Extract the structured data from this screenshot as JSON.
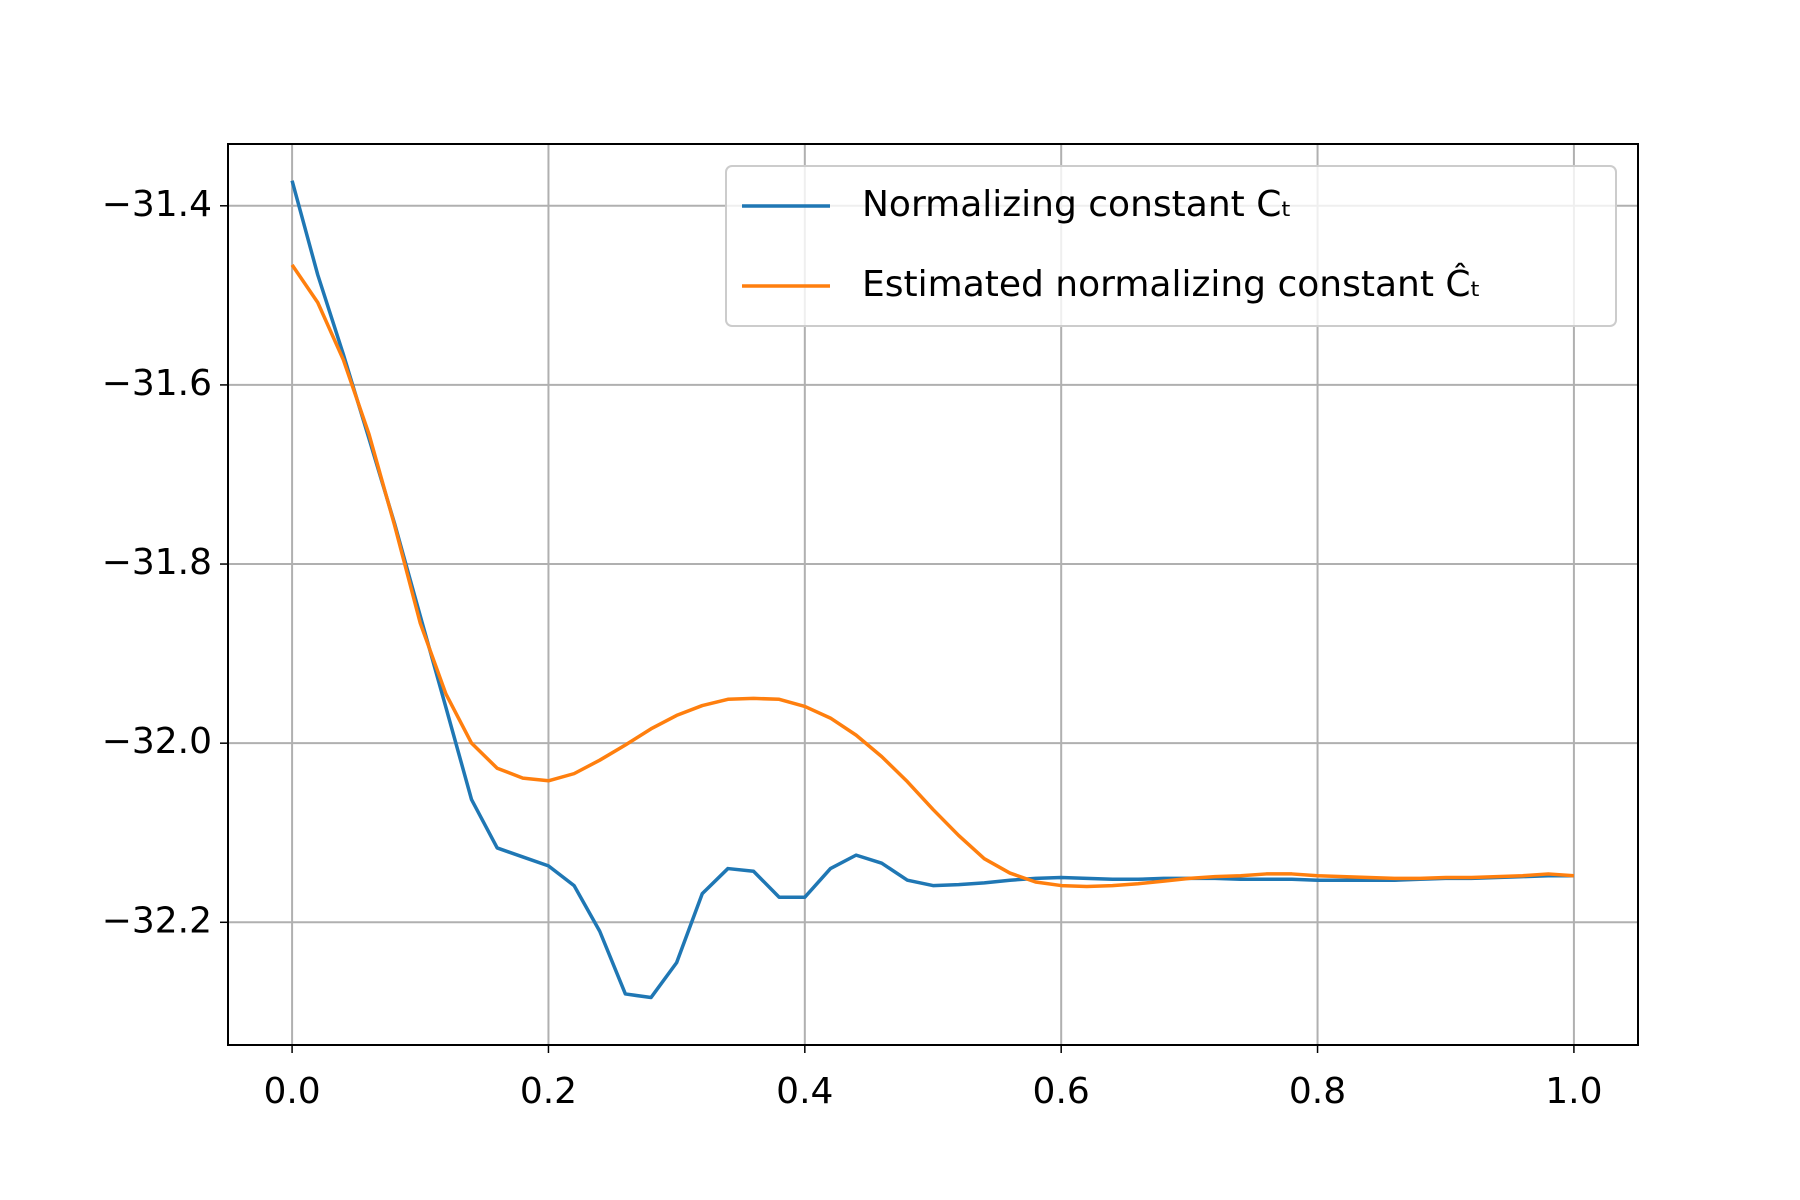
{
  "chart_data": {
    "type": "line",
    "x": [
      0,
      0.02,
      0.04,
      0.06,
      0.08,
      0.1,
      0.12,
      0.14,
      0.16,
      0.18,
      0.2,
      0.22,
      0.24,
      0.26,
      0.28,
      0.3,
      0.32,
      0.34,
      0.36,
      0.38,
      0.4,
      0.42,
      0.44,
      0.46,
      0.48,
      0.5,
      0.52,
      0.54,
      0.56,
      0.58,
      0.6,
      0.62,
      0.64,
      0.66,
      0.68,
      0.7,
      0.72,
      0.74,
      0.76,
      0.78,
      0.8,
      0.82,
      0.84,
      0.86,
      0.88,
      0.9,
      0.92,
      0.94,
      0.96,
      0.98,
      1.0
    ],
    "series": [
      {
        "name": "Normalizing constant Cₜ",
        "color": "#1f77b4",
        "values": [
          -31.372,
          -31.477,
          -31.566,
          -31.66,
          -31.755,
          -31.858,
          -31.96,
          -32.063,
          -32.117,
          -32.127,
          -32.137,
          -32.159,
          -32.21,
          -32.28,
          -32.284,
          -32.245,
          -32.168,
          -32.14,
          -32.143,
          -32.172,
          -32.172,
          -32.14,
          -32.125,
          -32.134,
          -32.153,
          -32.159,
          -32.158,
          -32.156,
          -32.153,
          -32.151,
          -32.15,
          -32.151,
          -32.152,
          -32.152,
          -32.151,
          -32.151,
          -32.151,
          -32.152,
          -32.152,
          -32.152,
          -32.153,
          -32.153,
          -32.153,
          -32.153,
          -32.152,
          -32.151,
          -32.151,
          -32.15,
          -32.149,
          -32.148,
          -32.148
        ]
      },
      {
        "name": "Estimated normalizing constant  Ĉₜ",
        "color": "#ff7f0e",
        "values": [
          -31.466,
          -31.508,
          -31.572,
          -31.655,
          -31.757,
          -31.866,
          -31.945,
          -32.0,
          -32.028,
          -32.039,
          -32.042,
          -32.034,
          -32.019,
          -32.002,
          -31.984,
          -31.969,
          -31.958,
          -31.951,
          -31.95,
          -31.951,
          -31.959,
          -31.972,
          -31.991,
          -32.015,
          -32.043,
          -32.074,
          -32.103,
          -32.129,
          -32.145,
          -32.155,
          -32.159,
          -32.16,
          -32.159,
          -32.157,
          -32.154,
          -32.151,
          -32.149,
          -32.148,
          -32.146,
          -32.146,
          -32.148,
          -32.149,
          -32.15,
          -32.151,
          -32.151,
          -32.15,
          -32.15,
          -32.149,
          -32.148,
          -32.146,
          -32.148
        ]
      }
    ],
    "xlim": [
      -0.05,
      1.05
    ],
    "ylim": [
      -32.337,
      -31.331
    ],
    "xticks": [
      {
        "value": 0,
        "label": "0.0"
      },
      0.2,
      0.4,
      0.6,
      0.8,
      {
        "value": 1,
        "label": "1.0"
      }
    ],
    "yticks": [
      {
        "value": -32.2,
        "label": "−32.2"
      },
      {
        "value": -32.0,
        "label": "−32.0"
      },
      {
        "value": -31.8,
        "label": "−31.8"
      },
      {
        "value": -31.6,
        "label": "−31.6"
      },
      {
        "value": -31.4,
        "label": "−31.4"
      }
    ],
    "grid": true,
    "legend": "upper right"
  }
}
